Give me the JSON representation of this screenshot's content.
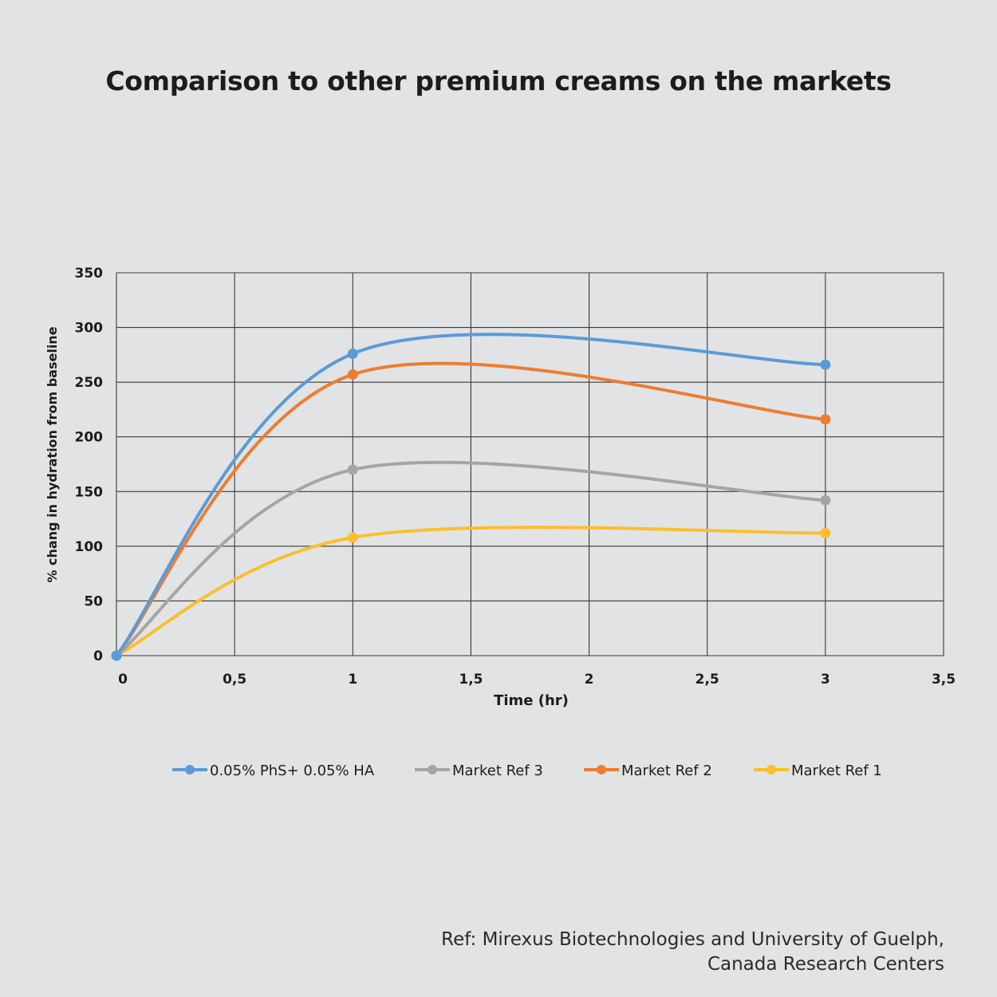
{
  "title": "Comparison to other premium creams on the markets",
  "reference": {
    "line1": "Ref: Mirexus Biotechnologies and University of Guelph,",
    "line2": "Canada Research Centers"
  },
  "chart_data": {
    "type": "line",
    "title": "Comparison to other premium creams on the markets",
    "xlabel": "Time (hr)",
    "ylabel": "% chang in hydration from baseline",
    "xlim": [
      0,
      3.5
    ],
    "ylim": [
      0,
      350
    ],
    "x_ticks": [
      "0",
      "0,5",
      "1",
      "1,5",
      "2",
      "2,5",
      "3",
      "3,5"
    ],
    "y_ticks": [
      "0",
      "50",
      "100",
      "150",
      "200",
      "250",
      "300",
      "350"
    ],
    "grid": true,
    "smooth": true,
    "legend_position": "bottom",
    "x": [
      0,
      1,
      3
    ],
    "series": [
      {
        "name": "0.05% PhS+ 0.05% HA",
        "color": "#5b9bd5",
        "values": [
          0,
          276,
          266
        ]
      },
      {
        "name": "Market Ref 3",
        "color": "#a5a5a5",
        "values": [
          0,
          170,
          142
        ]
      },
      {
        "name": "Market Ref 2",
        "color": "#ed7d31",
        "values": [
          0,
          257,
          216
        ]
      },
      {
        "name": "Market Ref 1",
        "color": "#fbbf2c",
        "values": [
          0,
          108,
          112
        ]
      }
    ]
  }
}
